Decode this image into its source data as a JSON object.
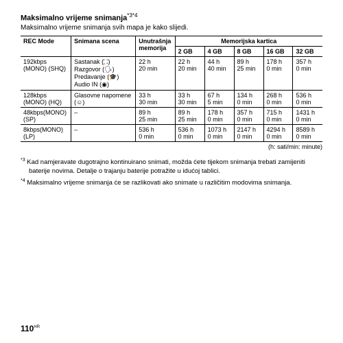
{
  "title": "Maksimalno vrijeme snimanja",
  "title_sup": "*3*4",
  "subtitle": "Maksimalno vrijeme snimanja svih mapa je kako slijedi.",
  "headers": {
    "rec_mode": "REC Mode",
    "scene": "Snimana scena",
    "memory": "Unutrašnja memorija",
    "card": "Memorijska kartica",
    "gb2": "2 GB",
    "gb4": "4 GB",
    "gb8": "8 GB",
    "gb16": "16 GB",
    "gb32": "32 GB"
  },
  "rows": [
    {
      "mode1": "192kbps",
      "mode2": "(MONO) (SHQ)",
      "scene": "Sastanak (⛶)\nRazgovor (🗣)\nPredavanje (🎓)\nAudio IN (◉)",
      "mem1": "22 h",
      "mem2": "20 min",
      "c2a": "22 h",
      "c2b": "20 min",
      "c4a": "44 h",
      "c4b": "40 min",
      "c8a": "89 h",
      "c8b": "25 min",
      "c16a": "178 h",
      "c16b": "0 min",
      "c32a": "357 h",
      "c32b": "0 min"
    },
    {
      "mode1": "128kbps",
      "mode2": "(MONO) (HQ)",
      "scene": "Glasovne napomene\n(☺)",
      "mem1": "33 h",
      "mem2": "30 min",
      "c2a": "33 h",
      "c2b": "30 min",
      "c4a": "67 h",
      "c4b": "5 min",
      "c8a": "134 h",
      "c8b": "0 min",
      "c16a": "268 h",
      "c16b": "0 min",
      "c32a": "536 h",
      "c32b": "0 min"
    },
    {
      "mode1": "48kbps(MONO)",
      "mode2": "(SP)",
      "scene": "–",
      "mem1": "89 h",
      "mem2": "25 min",
      "c2a": "89 h",
      "c2b": "25 min",
      "c4a": "178 h",
      "c4b": "0 min",
      "c8a": "357 h",
      "c8b": "0 min",
      "c16a": "715 h",
      "c16b": "0 min",
      "c32a": "1431 h",
      "c32b": "0 min"
    },
    {
      "mode1": "8kbps(MONO)",
      "mode2": "(LP)",
      "scene": "–",
      "mem1": "536 h",
      "mem2": "0 min",
      "c2a": "536 h",
      "c2b": "0 min",
      "c4a": "1073 h",
      "c4b": "0 min",
      "c8a": "2147 h",
      "c8b": "0 min",
      "c16a": "4294 h",
      "c16b": "0 min",
      "c32a": "8589 h",
      "c32b": "0 min"
    }
  ],
  "legend": "(h: sati/min: minute)",
  "footnote3_sup": "*3",
  "footnote3": " Kad namjeravate dugotrajno kontinuirano snimati, možda ćete tijekom snimanja trebati zamije­niti baterije novima. Detalje o trajanju baterije potražite u idućoj tablici.",
  "footnote4_sup": "*4",
  "footnote4": " Maksimalno vrijeme snimanja će se razlikovati ako snimate u različitim modovima snimanja.",
  "page_number": "110",
  "page_suffix": "HR"
}
